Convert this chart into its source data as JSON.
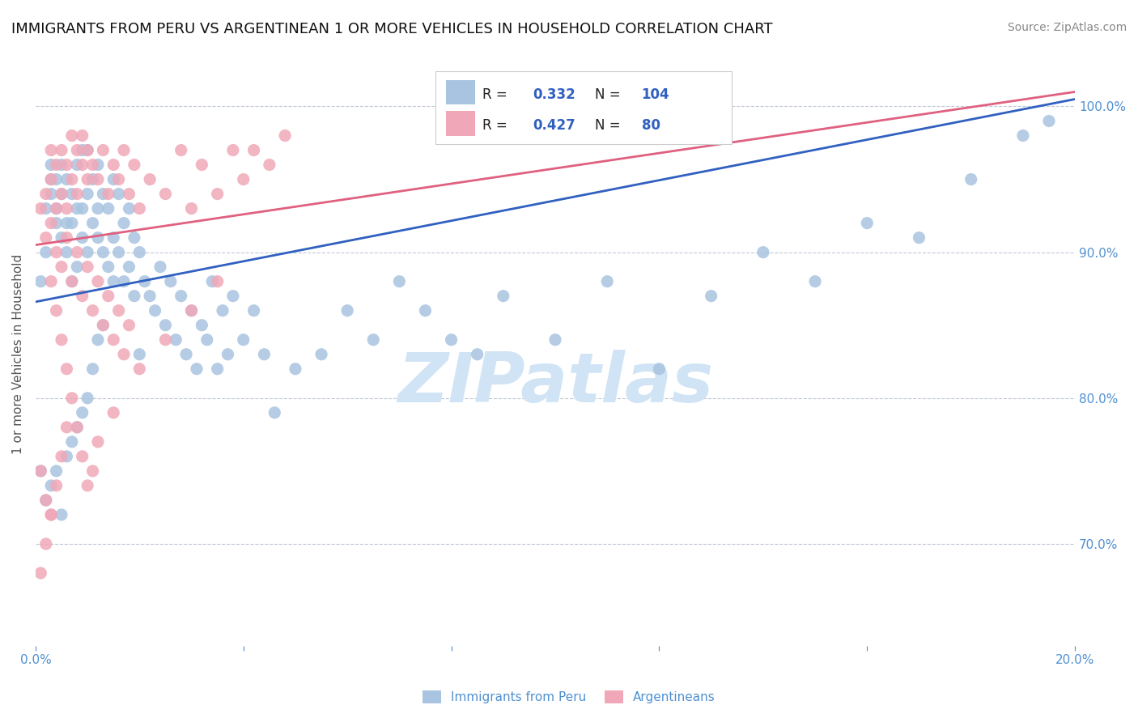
{
  "title": "IMMIGRANTS FROM PERU VS ARGENTINEAN 1 OR MORE VEHICLES IN HOUSEHOLD CORRELATION CHART",
  "source": "Source: ZipAtlas.com",
  "ylabel_left": "1 or more Vehicles in Household",
  "legend_labels": [
    "Immigrants from Peru",
    "Argentineans"
  ],
  "r_peru": 0.332,
  "n_peru": 104,
  "r_arg": 0.427,
  "n_arg": 80,
  "xlim": [
    0.0,
    0.2
  ],
  "ylim": [
    0.63,
    1.03
  ],
  "yticks_right": [
    0.7,
    0.8,
    0.9,
    1.0
  ],
  "ytick_right_labels": [
    "70.0%",
    "80.0%",
    "90.0%",
    "100.0%"
  ],
  "xticks": [
    0.0,
    0.04,
    0.08,
    0.12,
    0.16,
    0.2
  ],
  "blue_color": "#a8c4e0",
  "pink_color": "#f0a8b8",
  "blue_line_color": "#3060c0",
  "pink_line_color": "#e06080",
  "axis_color": "#5090d0",
  "background_color": "#ffffff",
  "watermark_text": "ZIPatlas",
  "watermark_color": "#d0e4f5",
  "title_fontsize": 13,
  "source_fontsize": 10,
  "scatter_peru_x": [
    0.001,
    0.002,
    0.002,
    0.003,
    0.003,
    0.003,
    0.004,
    0.004,
    0.004,
    0.005,
    0.005,
    0.005,
    0.006,
    0.006,
    0.006,
    0.007,
    0.007,
    0.007,
    0.008,
    0.008,
    0.008,
    0.009,
    0.009,
    0.009,
    0.01,
    0.01,
    0.01,
    0.011,
    0.011,
    0.012,
    0.012,
    0.012,
    0.013,
    0.013,
    0.014,
    0.014,
    0.015,
    0.015,
    0.016,
    0.016,
    0.017,
    0.017,
    0.018,
    0.018,
    0.019,
    0.019,
    0.02,
    0.021,
    0.022,
    0.023,
    0.024,
    0.025,
    0.026,
    0.027,
    0.028,
    0.029,
    0.03,
    0.031,
    0.032,
    0.033,
    0.034,
    0.035,
    0.036,
    0.037,
    0.038,
    0.04,
    0.042,
    0.044,
    0.046,
    0.05,
    0.055,
    0.06,
    0.065,
    0.07,
    0.075,
    0.08,
    0.085,
    0.09,
    0.1,
    0.11,
    0.12,
    0.13,
    0.14,
    0.15,
    0.16,
    0.17,
    0.18,
    0.19,
    0.195,
    0.001,
    0.002,
    0.003,
    0.004,
    0.005,
    0.006,
    0.007,
    0.008,
    0.009,
    0.01,
    0.011,
    0.012,
    0.013,
    0.015,
    0.02
  ],
  "scatter_peru_y": [
    0.88,
    0.9,
    0.93,
    0.95,
    0.94,
    0.96,
    0.92,
    0.93,
    0.95,
    0.91,
    0.94,
    0.96,
    0.9,
    0.92,
    0.95,
    0.88,
    0.92,
    0.94,
    0.89,
    0.93,
    0.96,
    0.91,
    0.93,
    0.97,
    0.9,
    0.94,
    0.97,
    0.92,
    0.95,
    0.91,
    0.93,
    0.96,
    0.9,
    0.94,
    0.89,
    0.93,
    0.91,
    0.95,
    0.9,
    0.94,
    0.88,
    0.92,
    0.89,
    0.93,
    0.87,
    0.91,
    0.9,
    0.88,
    0.87,
    0.86,
    0.89,
    0.85,
    0.88,
    0.84,
    0.87,
    0.83,
    0.86,
    0.82,
    0.85,
    0.84,
    0.88,
    0.82,
    0.86,
    0.83,
    0.87,
    0.84,
    0.86,
    0.83,
    0.79,
    0.82,
    0.83,
    0.86,
    0.84,
    0.88,
    0.86,
    0.84,
    0.83,
    0.87,
    0.84,
    0.88,
    0.82,
    0.87,
    0.9,
    0.88,
    0.92,
    0.91,
    0.95,
    0.98,
    0.99,
    0.75,
    0.73,
    0.74,
    0.75,
    0.72,
    0.76,
    0.77,
    0.78,
    0.79,
    0.8,
    0.82,
    0.84,
    0.85,
    0.88,
    0.83
  ],
  "scatter_arg_x": [
    0.001,
    0.002,
    0.003,
    0.003,
    0.004,
    0.004,
    0.005,
    0.005,
    0.006,
    0.006,
    0.007,
    0.007,
    0.008,
    0.008,
    0.009,
    0.009,
    0.01,
    0.01,
    0.011,
    0.012,
    0.013,
    0.014,
    0.015,
    0.016,
    0.017,
    0.018,
    0.019,
    0.02,
    0.022,
    0.025,
    0.028,
    0.03,
    0.032,
    0.035,
    0.038,
    0.04,
    0.042,
    0.045,
    0.048,
    0.002,
    0.003,
    0.004,
    0.005,
    0.006,
    0.007,
    0.008,
    0.009,
    0.01,
    0.011,
    0.012,
    0.013,
    0.014,
    0.015,
    0.016,
    0.017,
    0.018,
    0.003,
    0.004,
    0.005,
    0.006,
    0.007,
    0.008,
    0.009,
    0.01,
    0.011,
    0.012,
    0.015,
    0.02,
    0.025,
    0.03,
    0.035,
    0.001,
    0.002,
    0.003,
    0.004,
    0.005,
    0.006,
    0.001,
    0.002,
    0.003
  ],
  "scatter_arg_y": [
    0.93,
    0.94,
    0.95,
    0.97,
    0.93,
    0.96,
    0.94,
    0.97,
    0.93,
    0.96,
    0.95,
    0.98,
    0.94,
    0.97,
    0.96,
    0.98,
    0.95,
    0.97,
    0.96,
    0.95,
    0.97,
    0.94,
    0.96,
    0.95,
    0.97,
    0.94,
    0.96,
    0.93,
    0.95,
    0.94,
    0.97,
    0.93,
    0.96,
    0.94,
    0.97,
    0.95,
    0.97,
    0.96,
    0.98,
    0.91,
    0.92,
    0.9,
    0.89,
    0.91,
    0.88,
    0.9,
    0.87,
    0.89,
    0.86,
    0.88,
    0.85,
    0.87,
    0.84,
    0.86,
    0.83,
    0.85,
    0.88,
    0.86,
    0.84,
    0.82,
    0.8,
    0.78,
    0.76,
    0.74,
    0.75,
    0.77,
    0.79,
    0.82,
    0.84,
    0.86,
    0.88,
    0.75,
    0.73,
    0.72,
    0.74,
    0.76,
    0.78,
    0.68,
    0.7,
    0.72
  ],
  "blue_line_x0": 0.0,
  "blue_line_y0": 0.866,
  "blue_line_x1": 0.2,
  "blue_line_y1": 1.005,
  "pink_line_x0": 0.0,
  "pink_line_y0": 0.905,
  "pink_line_x1": 0.2,
  "pink_line_y1": 1.01
}
